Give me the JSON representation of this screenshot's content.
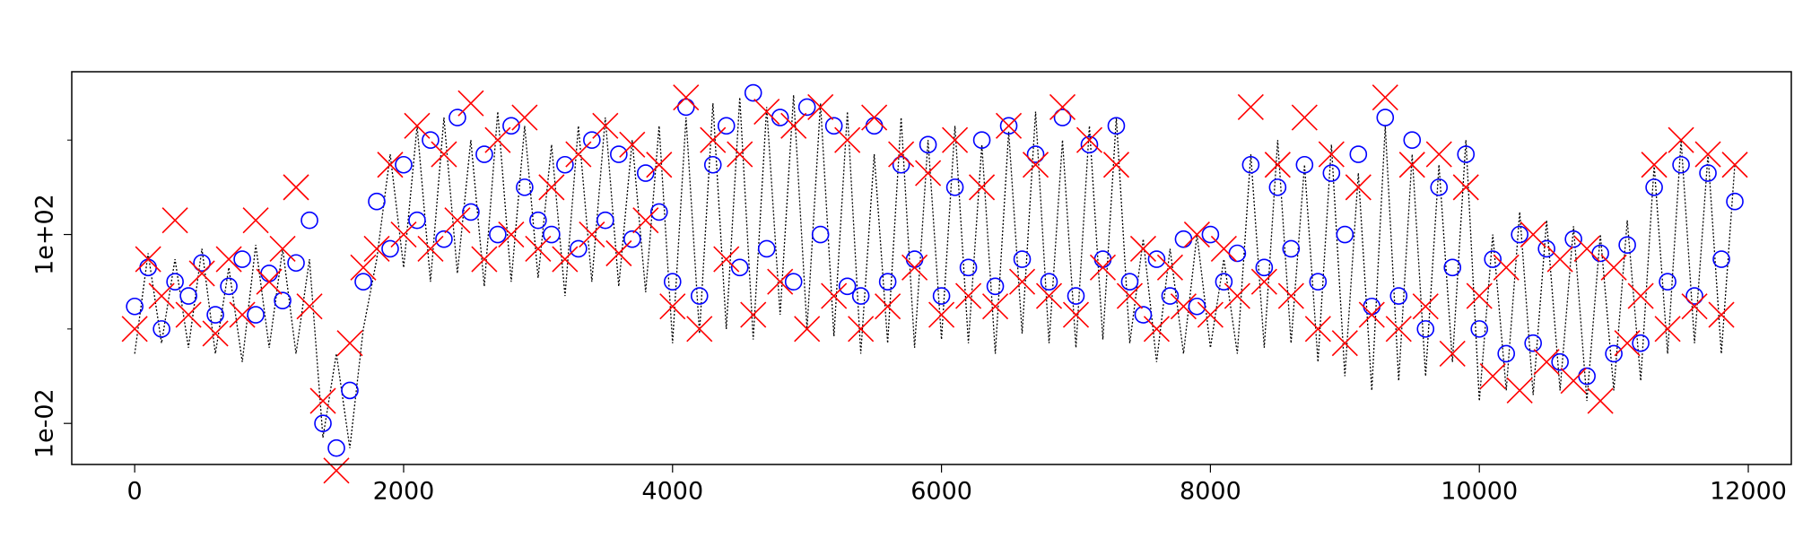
{
  "chart_data": {
    "type": "line",
    "x": [
      0,
      100,
      200,
      300,
      400,
      500,
      600,
      700,
      800,
      900,
      1000,
      1100,
      1200,
      1300,
      1400,
      1500,
      1600,
      1700,
      1800,
      1900,
      2000,
      2100,
      2200,
      2300,
      2400,
      2500,
      2600,
      2700,
      2800,
      2900,
      3000,
      3100,
      3200,
      3300,
      3400,
      3500,
      3600,
      3700,
      3800,
      3900,
      4000,
      4100,
      4200,
      4300,
      4400,
      4500,
      4600,
      4700,
      4800,
      4900,
      5000,
      5100,
      5200,
      5300,
      5400,
      5500,
      5600,
      5700,
      5800,
      5900,
      6000,
      6100,
      6200,
      6300,
      6400,
      6500,
      6600,
      6700,
      6800,
      6900,
      7000,
      7100,
      7200,
      7300,
      7400,
      7500,
      7600,
      7700,
      7800,
      7900,
      8000,
      8100,
      8200,
      8300,
      8400,
      8500,
      8600,
      8700,
      8800,
      8900,
      9000,
      9100,
      9200,
      9300,
      9400,
      9500,
      9600,
      9700,
      9800,
      9900,
      10000,
      10100,
      10200,
      10300,
      10400,
      10500,
      10600,
      10700,
      10800,
      10900,
      11000,
      11100,
      11200,
      11300,
      11400,
      11500,
      11600,
      11700,
      11800,
      11900
    ],
    "series": [
      {
        "kind": "line",
        "color": "#000000",
        "values": [
          0.3,
          40,
          0.5,
          30,
          0.4,
          50,
          0.3,
          20,
          0.2,
          60,
          0.4,
          50,
          0.3,
          30,
          0.005,
          0.3,
          0.003,
          1,
          30,
          5000,
          20,
          20000,
          10,
          30000,
          15,
          10000,
          8,
          40000,
          10,
          20000,
          12,
          8000,
          5,
          20000,
          10,
          30000,
          8,
          10000,
          6,
          20000,
          0.5,
          30000,
          0.8,
          60000,
          1,
          80000,
          0.6,
          50000,
          2,
          90000,
          1,
          60000,
          0.7,
          40000,
          0.3,
          5000,
          0.5,
          30000,
          0.4,
          10000,
          0.6,
          20000,
          0.5,
          8000,
          0.3,
          15000,
          0.8,
          40000,
          0.5,
          10000,
          0.4,
          20000,
          0.6,
          30000,
          0.5,
          80,
          0.2,
          50,
          0.3,
          100,
          0.4,
          30,
          0.3,
          5000,
          0.4,
          10000,
          0.5,
          3000,
          0.2,
          8000,
          0.1,
          2000,
          0.05,
          20000,
          0.08,
          5000,
          0.1,
          3000,
          0.2,
          10000,
          0.03,
          100,
          0.05,
          300,
          0.04,
          200,
          0.05,
          150,
          0.03,
          100,
          0.05,
          200,
          0.08,
          3000,
          0.3,
          10000,
          0.5,
          5000,
          0.3,
          3000
        ]
      },
      {
        "kind": "scatter",
        "marker": "o",
        "color": "#0000ff",
        "values": [
          3,
          20,
          1,
          10,
          5,
          25,
          2,
          8,
          30,
          2,
          15,
          4,
          25,
          200,
          0.01,
          0.003,
          0.05,
          10,
          500,
          50,
          3000,
          200,
          10000,
          80,
          30000,
          300,
          5000,
          100,
          20000,
          1000,
          200,
          100,
          3000,
          50,
          10000,
          200,
          5000,
          80,
          2000,
          300,
          10,
          50000,
          5,
          3000,
          20000,
          20,
          100000,
          50,
          30000,
          10,
          50000,
          100,
          20000,
          8,
          5,
          20000,
          10,
          3000,
          30,
          8000,
          5,
          1000,
          20,
          10000,
          8,
          20000,
          30,
          5000,
          10,
          30000,
          5,
          8000,
          30,
          20000,
          10,
          2,
          30,
          5,
          80,
          3,
          100,
          10,
          40,
          3000,
          20,
          1000,
          50,
          3000,
          10,
          2000,
          100,
          5000,
          3,
          30000,
          5,
          10000,
          1,
          1000,
          20,
          5000,
          1,
          30,
          0.3,
          100,
          0.5,
          50,
          0.2,
          80,
          0.1,
          40,
          0.3,
          60,
          0.5,
          1000,
          10,
          3000,
          5,
          2000,
          30,
          500
        ]
      },
      {
        "kind": "scatter",
        "marker": "x",
        "color": "#ff0000",
        "values": [
          1,
          30,
          5,
          200,
          2,
          15,
          0.8,
          30,
          2,
          200,
          10,
          50,
          1000,
          3,
          0.03,
          0.001,
          0.5,
          20,
          50,
          3000,
          100,
          20000,
          50,
          5000,
          200,
          60000,
          30,
          10000,
          100,
          30000,
          50,
          1000,
          30,
          5000,
          100,
          20000,
          40,
          8000,
          200,
          3000,
          3,
          80000,
          1,
          10000,
          30,
          5000,
          2,
          40000,
          10,
          20000,
          1,
          50000,
          5,
          10000,
          1,
          30000,
          3,
          5000,
          20,
          2000,
          2,
          10000,
          5,
          1000,
          3,
          20000,
          10,
          3000,
          5,
          50000,
          2,
          10000,
          20,
          3000,
          5,
          50,
          1,
          20,
          3,
          100,
          2,
          50,
          5,
          50000,
          10,
          3000,
          5,
          30000,
          1,
          5000,
          0.5,
          1000,
          2,
          80000,
          1,
          3000,
          3,
          5000,
          0.3,
          1000,
          5,
          0.1,
          20,
          0.05,
          100,
          0.2,
          30,
          0.08,
          50,
          0.03,
          20,
          0.5,
          5,
          3000,
          1,
          10000,
          3,
          5000,
          2,
          3000
        ]
      }
    ],
    "xlim": [
      -468,
      12320
    ],
    "xticks": [
      0,
      2000,
      4000,
      6000,
      8000,
      10000,
      12000
    ],
    "ylim": [
      0.00135,
      280000
    ],
    "ylog": true,
    "yticks": [
      {
        "value": 0.01,
        "label": "1e-02"
      },
      {
        "value": 100,
        "label": "1e+02"
      }
    ],
    "yticks_minor": [
      1,
      10000
    ],
    "grid": false
  }
}
